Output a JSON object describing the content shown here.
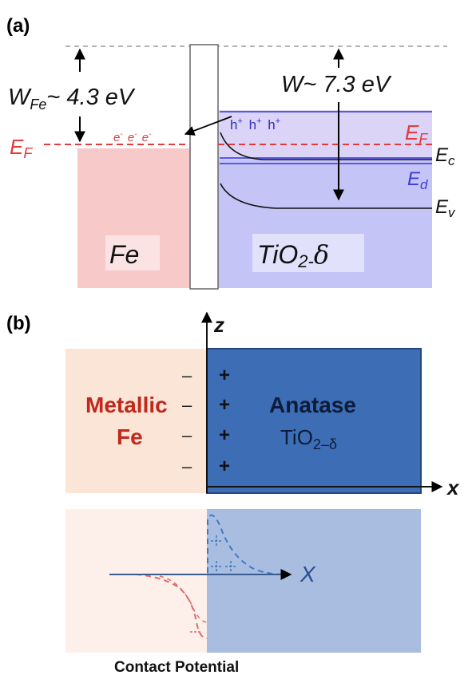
{
  "panel_a": {
    "label": "(a)",
    "work_fe": {
      "w": "W",
      "sub": "Fe",
      "rest": "~ 4.3 eV"
    },
    "work_tio2": "W~ 7.3 eV",
    "ef_left": {
      "e": "E",
      "sub": "F"
    },
    "ef_right": {
      "e": "E",
      "sub": "F"
    },
    "electrons": [
      "e",
      "e",
      "e"
    ],
    "electron_sup": "-",
    "holes": [
      "h",
      "h",
      "h"
    ],
    "hole_sup": "+",
    "ec": {
      "e": "E",
      "sub": "c"
    },
    "ed": {
      "e": "E",
      "sub": "d"
    },
    "ev": {
      "e": "E",
      "sub": "v"
    },
    "fe_label": "Fe",
    "tio2_label": {
      "main": "TiO",
      "sub": "2-",
      "delta": "δ"
    },
    "colors": {
      "fe_fill": "#f7c9c9",
      "tio2_fill": "#c4c4f7",
      "fermi": "#e23b3b",
      "band_blue": "#5a5ae6",
      "ed_text": "#3c3cd8"
    }
  },
  "panel_b": {
    "label": "(b)",
    "z_axis": "z",
    "x_axis": "x",
    "metal_label": [
      "Metallic",
      "Fe"
    ],
    "anatase_label": "Anatase",
    "tio2_label": {
      "main": "TiO",
      "sub": "2–δ"
    },
    "minus_sign": "–",
    "plus_sign": "+",
    "colors": {
      "metal_fill": "#fbe5d6",
      "anatase_fill": "#3d6db5",
      "metal_text": "#c0281c",
      "anatase_text": "#0d1c3a"
    }
  },
  "panel_c": {
    "x_axis": "X",
    "caption": "Contact Potential",
    "colors": {
      "left_fill": "#fdf0ea",
      "right_fill": "#a8bde0",
      "red_curve": "#e06a6a",
      "blue_curve": "#3e7bc4"
    }
  }
}
